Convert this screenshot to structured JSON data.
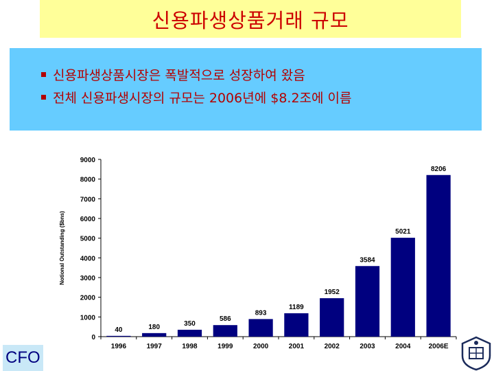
{
  "slide": {
    "title": "신용파생상품거래 규모",
    "bullets": [
      "신용파생상품시장은 폭발적으로 성장하여 왔음",
      "전체 신용파생시장의 규모는 2006년에 $8.2조에 이름"
    ],
    "footer_label": "CFO"
  },
  "colors": {
    "title_bg": "#ffff99",
    "title_text": "#cc0000",
    "bullet_bg": "#66ccff",
    "bullet_text": "#b30000",
    "bar": "#00007f",
    "footer_bg": "#c9e8f7",
    "footer_text": "#000080"
  },
  "icons": {
    "emblem": "university-emblem-icon"
  },
  "chart_data": {
    "type": "bar",
    "categories": [
      "1996",
      "1997",
      "1998",
      "1999",
      "2000",
      "2001",
      "2002",
      "2003",
      "2004",
      "2006E"
    ],
    "values": [
      40,
      180,
      350,
      586,
      893,
      1189,
      1952,
      3584,
      5021,
      8206
    ],
    "data_labels": [
      "40",
      "180",
      "350",
      "586",
      "893",
      "1189",
      "1952",
      "3584",
      "5021",
      "8206"
    ],
    "title": "",
    "xlabel": "",
    "ylabel": "Notional Outstanding ($bns)",
    "ylim": [
      0,
      9000
    ],
    "yticks": [
      0,
      1000,
      2000,
      3000,
      4000,
      5000,
      6000,
      7000,
      8000,
      9000
    ],
    "grid": false,
    "legend": "none"
  }
}
